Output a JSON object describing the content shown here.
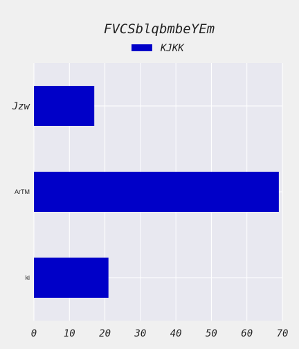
{
  "chart_data": {
    "type": "bar",
    "orientation": "horizontal",
    "title": "FVCSblqbmbeYEm",
    "categories": [
      "Jzw",
      "ArTM",
      "ki"
    ],
    "series": [
      {
        "name": "KJKK",
        "values": [
          17,
          69,
          21
        ],
        "color": "#0000c8"
      }
    ],
    "xlim": [
      0,
      70
    ],
    "xticks": [
      "0",
      "10",
      "20",
      "30",
      "40",
      "50",
      "60",
      "70"
    ],
    "grid": true,
    "legend": "top-center",
    "plot_background": "#e8e8f0",
    "grid_color": "#ffffff"
  }
}
